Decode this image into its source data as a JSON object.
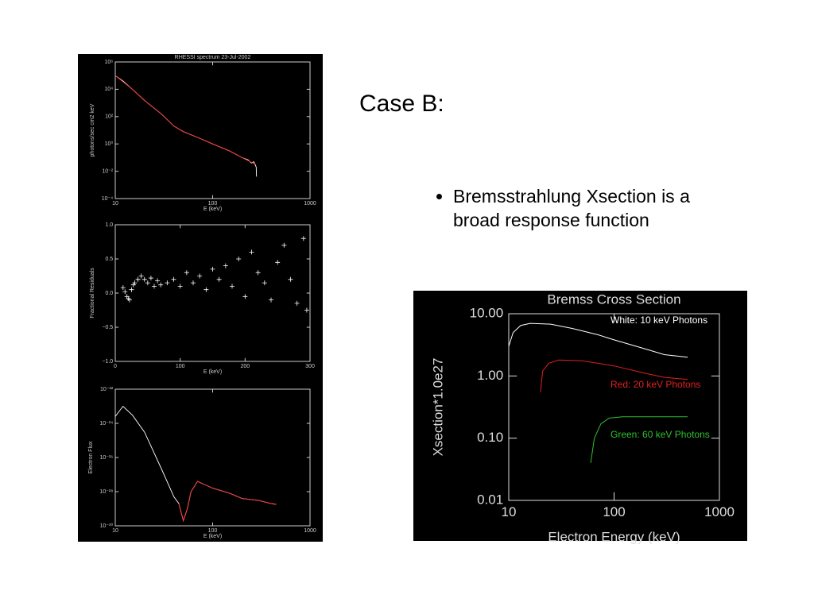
{
  "slide": {
    "title": "Case B:",
    "bullet": "Bremsstrahlung Xsection is a broad response function"
  },
  "chart_data": [
    {
      "type": "line",
      "title": "RHESSI spectrum 23-Jul-2002",
      "x_label": "E (keV)",
      "y_label": "photons/sec cm2 keV",
      "xlog": true,
      "ylog": true,
      "xlim": [
        10,
        1000
      ],
      "ylim": [
        0.0001,
        1000000
      ],
      "xticks": [
        10,
        100,
        1000
      ],
      "yticks": [
        {
          "value": 1000000,
          "label": "10⁶"
        },
        {
          "value": 10000,
          "label": "10⁴"
        },
        {
          "value": 100,
          "label": "10²"
        },
        {
          "value": 1,
          "label": "10⁰"
        },
        {
          "value": 0.01,
          "label": "10⁻²"
        },
        {
          "value": 0.0001,
          "label": "10⁻⁴"
        }
      ],
      "series": [
        {
          "color": "#ffffff",
          "x": [
            10,
            12,
            15,
            20,
            30,
            40,
            50,
            70,
            100,
            150,
            200,
            230,
            250,
            265,
            280,
            282
          ],
          "values": [
            100000,
            40000,
            10000,
            1500,
            150,
            20,
            8,
            3,
            1,
            0.3,
            0.1,
            0.07,
            0.04,
            0.05,
            0.02,
            0.004
          ]
        },
        {
          "color": "#ff3030",
          "x": [
            10,
            15,
            20,
            30,
            40,
            50,
            70,
            100,
            150,
            200,
            280
          ],
          "values": [
            100000,
            10000,
            1500,
            150,
            20,
            8,
            3,
            1,
            0.3,
            0.1,
            0.03
          ]
        }
      ]
    },
    {
      "type": "scatter",
      "x_label": "E (keV)",
      "y_label": "Fractional Residuals",
      "xlim": [
        0,
        300
      ],
      "ylim": [
        -1,
        1
      ],
      "xticks": [
        0,
        100,
        200,
        300
      ],
      "yticks": [
        {
          "value": 1,
          "label": "1.0"
        },
        {
          "value": 0.5,
          "label": "0.5"
        },
        {
          "value": 0,
          "label": "0.0"
        },
        {
          "value": -0.5,
          "label": "−0.5"
        },
        {
          "value": -1,
          "label": "−1.0"
        }
      ],
      "color": "#ffffff",
      "x": [
        12,
        15,
        18,
        20,
        22,
        25,
        28,
        30,
        35,
        40,
        45,
        50,
        55,
        60,
        65,
        70,
        80,
        90,
        100,
        110,
        120,
        130,
        140,
        150,
        160,
        170,
        180,
        190,
        200,
        210,
        220,
        230,
        240,
        250,
        260,
        270,
        280,
        290,
        295
      ],
      "values": [
        0.08,
        0.02,
        -0.05,
        -0.08,
        -0.1,
        0.05,
        0.12,
        0.15,
        0.2,
        0.25,
        0.2,
        0.15,
        0.22,
        0.1,
        0.18,
        0.12,
        0.15,
        0.2,
        0.1,
        0.3,
        0.15,
        0.25,
        0.05,
        0.35,
        0.2,
        0.4,
        0.1,
        0.5,
        -0.05,
        0.6,
        0.3,
        0.15,
        -0.1,
        0.45,
        0.7,
        0.2,
        -0.15,
        0.8,
        -0.25
      ]
    },
    {
      "type": "line",
      "x_label": "E (keV)",
      "y_label": "Electron Flux",
      "xlog": true,
      "ylog": true,
      "xlim": [
        10,
        1000
      ],
      "ylim": [
        1e-30,
        1e-22
      ],
      "xticks": [
        10,
        100,
        1000
      ],
      "yticks": [
        {
          "value": 1e-22,
          "label": "10⁻²²"
        },
        {
          "value": 1e-24,
          "label": "10⁻²⁴"
        },
        {
          "value": 1e-26,
          "label": "10⁻²⁶"
        },
        {
          "value": 1e-28,
          "label": "10⁻²⁸"
        },
        {
          "value": 1e-30,
          "label": "10⁻³⁰"
        }
      ],
      "series": [
        {
          "color": "#ffffff",
          "x": [
            10,
            12,
            15,
            20,
            30,
            40,
            45,
            50,
            55,
            60,
            70,
            100,
            150,
            200,
            300,
            400,
            450
          ],
          "values": [
            2.5e-24,
            1e-23,
            3e-24,
            3e-25,
            2e-27,
            5e-29,
            2e-29,
            2e-30,
            1e-29,
            1e-28,
            4e-28,
            1.6e-28,
            8e-29,
            4e-29,
            3e-29,
            2e-29,
            1.8e-29
          ]
        },
        {
          "color": "#ff3030",
          "x": [
            45,
            50,
            55,
            60,
            70,
            100,
            150,
            200,
            300,
            400,
            450
          ],
          "values": [
            2e-29,
            2e-30,
            1e-29,
            1e-28,
            4e-28,
            1.6e-28,
            8e-29,
            4e-29,
            3e-29,
            2e-29,
            1.8e-29
          ]
        }
      ]
    },
    {
      "type": "line",
      "title": "Bremss Cross Section",
      "x_label": "Electron Energy (keV)",
      "y_label": "Xsection*1.0e27",
      "xlog": true,
      "ylog": true,
      "xlim": [
        10,
        1000
      ],
      "ylim": [
        0.01,
        10
      ],
      "xticks": [
        10,
        100,
        1000
      ],
      "yticks": [
        {
          "value": 10,
          "label": "10.00"
        },
        {
          "value": 1,
          "label": "1.00"
        },
        {
          "value": 0.1,
          "label": "0.10"
        },
        {
          "value": 0.01,
          "label": "0.01"
        }
      ],
      "series": [
        {
          "name": "White: 10 keV Photons",
          "color": "#ffffff",
          "x": [
            10,
            11,
            13,
            16,
            25,
            40,
            70,
            100,
            200,
            300,
            500
          ],
          "values": [
            3,
            5,
            6.5,
            7,
            6.8,
            5.8,
            4.6,
            3.8,
            2.7,
            2.2,
            2.0
          ]
        },
        {
          "name": "Red: 20 keV Photons",
          "color": "#e02020",
          "x": [
            20,
            21,
            24,
            30,
            50,
            100,
            200,
            300,
            500
          ],
          "values": [
            0.55,
            1.2,
            1.6,
            1.8,
            1.75,
            1.45,
            1.1,
            0.95,
            0.88
          ]
        },
        {
          "name": "Green: 60 keV Photons",
          "color": "#30c030",
          "x": [
            60,
            65,
            75,
            90,
            120,
            300,
            500
          ],
          "values": [
            0.04,
            0.1,
            0.17,
            0.21,
            0.22,
            0.22,
            0.22
          ]
        }
      ]
    }
  ]
}
